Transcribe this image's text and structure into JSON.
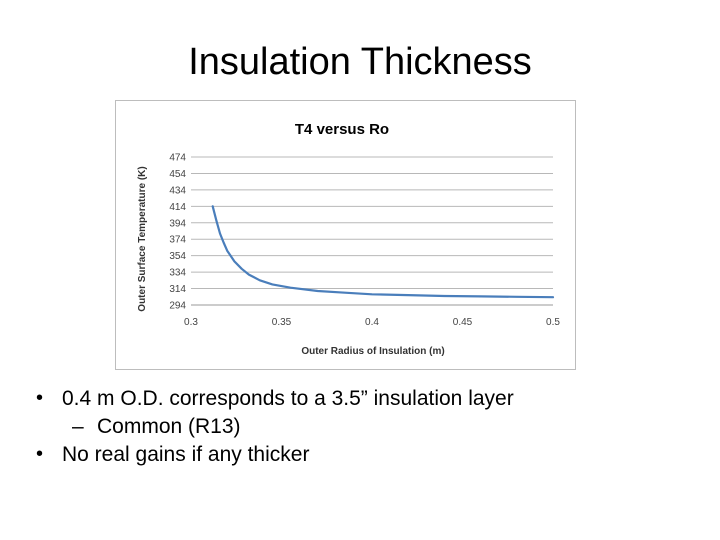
{
  "slide": {
    "title": "Insulation Thickness"
  },
  "bullets": [
    {
      "symbol": "•",
      "text": "0.4 m O.D. corresponds to a 3.5” insulation layer"
    },
    {
      "symbol": "–",
      "text": "Common (R13)",
      "level": 2
    },
    {
      "symbol": "•",
      "text": "No real gains if any thicker"
    }
  ],
  "chart_data": {
    "type": "line",
    "title": "T4  versus Ro",
    "xlabel": "Outer Radius of Insulation (m)",
    "ylabel": "Outer Surface Temperature (K)",
    "xlim": [
      0.3,
      0.5
    ],
    "ylim": [
      294,
      474
    ],
    "x_ticks": [
      "0.3",
      "0.35",
      "0.4",
      "0.45",
      "0.5"
    ],
    "y_ticks": [
      "474",
      "454",
      "434",
      "414",
      "394",
      "374",
      "354",
      "334",
      "314",
      "294"
    ],
    "grid": true,
    "legend": false,
    "series": [
      {
        "color": "#4a7ebb",
        "x": [
          0.312,
          0.314,
          0.316,
          0.318,
          0.32,
          0.324,
          0.328,
          0.332,
          0.338,
          0.345,
          0.355,
          0.37,
          0.385,
          0.4,
          0.42,
          0.44,
          0.46,
          0.48,
          0.5
        ],
        "y": [
          414,
          397,
          381,
          370,
          360,
          347,
          338,
          331,
          324,
          319,
          315,
          311,
          309,
          307,
          306,
          305,
          304.5,
          304,
          303.5
        ]
      }
    ]
  }
}
